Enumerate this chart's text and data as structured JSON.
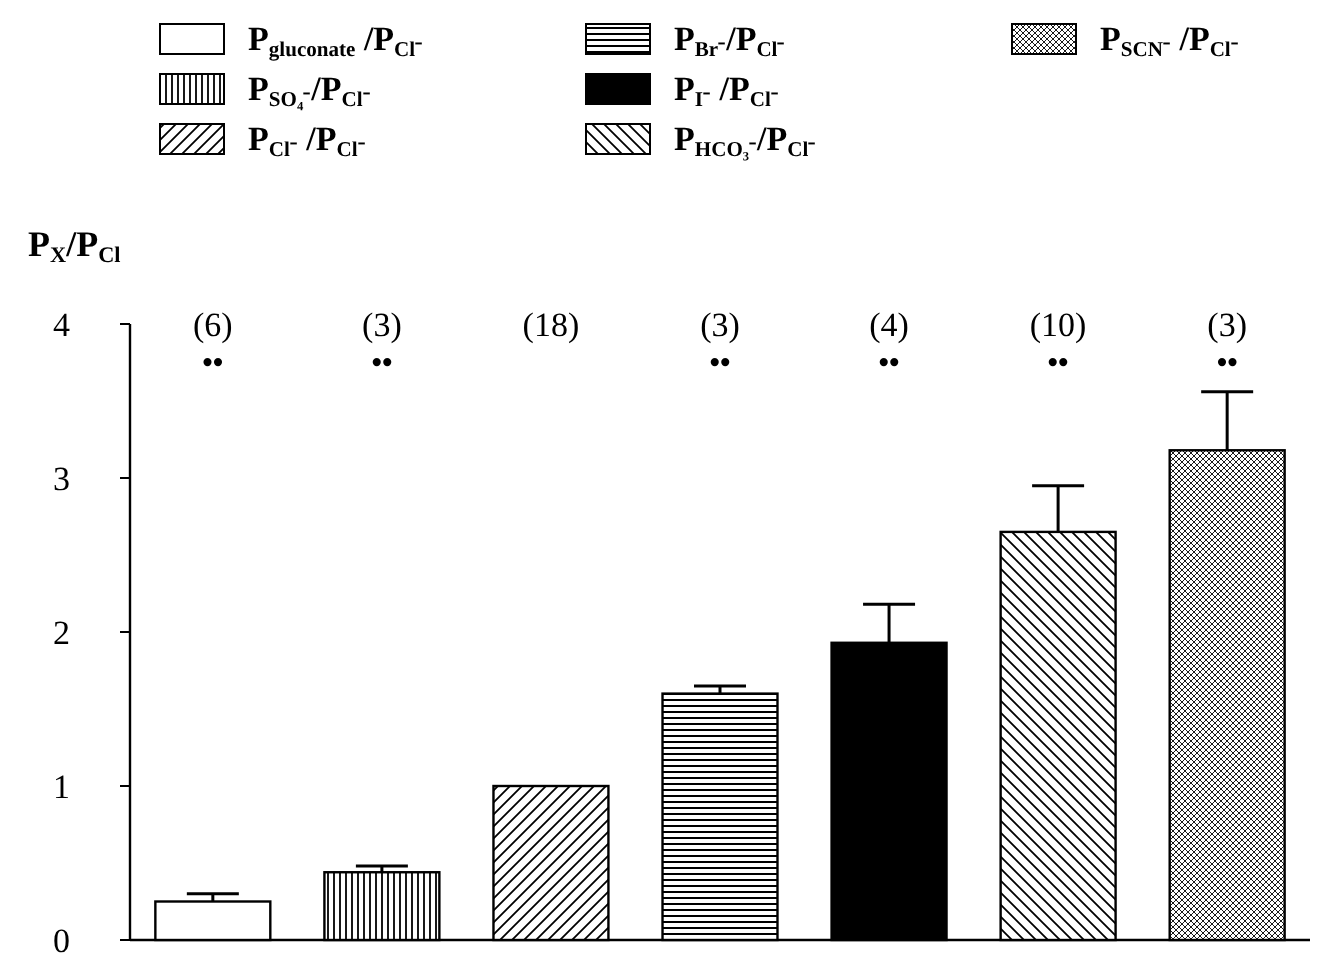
{
  "chart_data": {
    "type": "bar",
    "ylabel": "P$_{X}$/P$_{Cl}$",
    "categories": [
      null,
      null,
      null,
      null,
      null,
      null,
      null
    ],
    "series": [
      {
        "name": "P$_{gluconate}$ /P$_{Cl⁻}$",
        "color": "#ffffff",
        "values": [
          0.25,
          null,
          null,
          null,
          null,
          null,
          null
        ],
        "errors": [
          0.05,
          null,
          null,
          null,
          null,
          null,
          null
        ]
      },
      {
        "name": "P$_{SO₄⁻}$/P$_{Cl⁻}$",
        "color": "#000000",
        "values": [
          null,
          0.44,
          null,
          null,
          null,
          null,
          null
        ],
        "errors": [
          null,
          0.04,
          null,
          null,
          null,
          null,
          null
        ]
      },
      {
        "name": "P$_{Cl⁻}$ /P$_{Cl⁻}$",
        "color": "#000000",
        "values": [
          null,
          null,
          1.0,
          null,
          null,
          null,
          null
        ],
        "errors": [
          null,
          null,
          null,
          null,
          null,
          null,
          null
        ]
      },
      {
        "name": "P$_{Br⁻}$/P$_{Cl⁻}$",
        "color": "#000000",
        "values": [
          null,
          null,
          null,
          1.6,
          null,
          null,
          null
        ],
        "errors": [
          null,
          null,
          null,
          0.05,
          null,
          null,
          null
        ]
      },
      {
        "name": "P$_{I⁻}$ /P$_{Cl⁻}$",
        "color": "#000000",
        "values": [
          null,
          null,
          null,
          null,
          1.93,
          null,
          null
        ],
        "errors": [
          null,
          null,
          null,
          null,
          0.25,
          null,
          null
        ]
      },
      {
        "name": "P$_{HCO₃⁻}$/P$_{Cl⁻}$",
        "color": "#000000",
        "values": [
          null,
          null,
          null,
          null,
          null,
          2.65,
          null
        ],
        "errors": [
          null,
          null,
          null,
          null,
          null,
          0.3,
          null
        ]
      },
      {
        "name": "P$_{SCN⁻}$ /P$_{Cl⁻}$",
        "color": "#000000",
        "values": [
          null,
          null,
          null,
          null,
          null,
          null,
          3.18
        ],
        "errors": [
          null,
          null,
          null,
          null,
          null,
          null,
          0.38
        ]
      }
    ],
    "ylim": [
      0,
      4
    ],
    "yticks": [
      0,
      1,
      2,
      3,
      4
    ],
    "grid": false,
    "legend": "top",
    "annotations": [
      "(6)\n••",
      "(3)\n••",
      "(18)",
      "(3)\n••",
      "(4)\n••",
      "(10)\n••",
      "(3)\n••"
    ]
  }
}
